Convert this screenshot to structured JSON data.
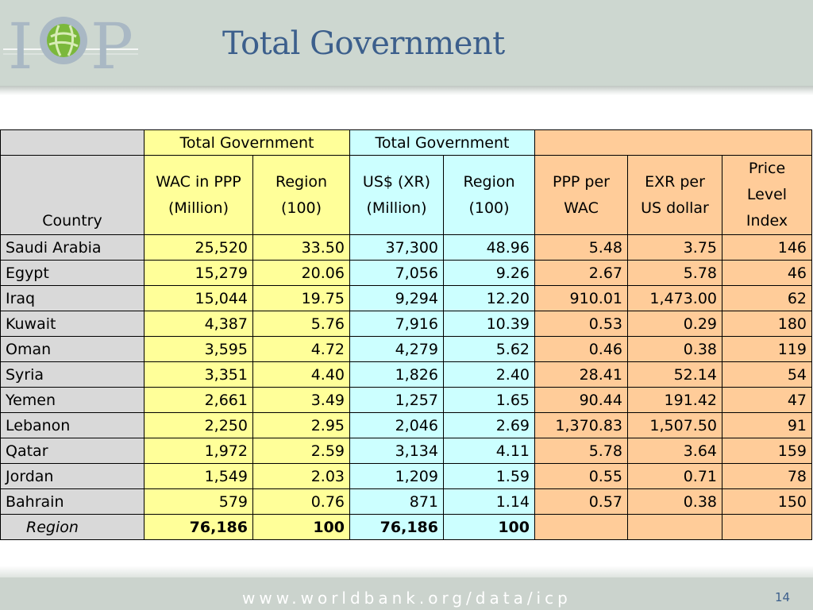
{
  "header": {
    "title": "Total Government"
  },
  "footer": {
    "url": "www.worldbank.org/data/icp",
    "page": "14"
  },
  "table": {
    "group_headers": [
      "Total Government",
      "Total Government"
    ],
    "columns": [
      "Country",
      "WAC in PPP (Million)",
      "Region (100)",
      "US$ (XR) (Million)",
      "Region (100)",
      "PPP per WAC",
      "EXR per US dollar",
      "Price Level Index"
    ],
    "rows": [
      [
        "Saudi Arabia",
        "25,520",
        "33.50",
        "37,300",
        "48.96",
        "5.48",
        "3.75",
        "146"
      ],
      [
        "Egypt",
        "15,279",
        "20.06",
        "7,056",
        "9.26",
        "2.67",
        "5.78",
        "46"
      ],
      [
        "Iraq",
        "15,044",
        "19.75",
        "9,294",
        "12.20",
        "910.01",
        "1,473.00",
        "62"
      ],
      [
        "Kuwait",
        "4,387",
        "5.76",
        "7,916",
        "10.39",
        "0.53",
        "0.29",
        "180"
      ],
      [
        "Oman",
        "3,595",
        "4.72",
        "4,279",
        "5.62",
        "0.46",
        "0.38",
        "119"
      ],
      [
        "Syria",
        "3,351",
        "4.40",
        "1,826",
        "2.40",
        "28.41",
        "52.14",
        "54"
      ],
      [
        "Yemen",
        "2,661",
        "3.49",
        "1,257",
        "1.65",
        "90.44",
        "191.42",
        "47"
      ],
      [
        "Lebanon",
        "2,250",
        "2.95",
        "2,046",
        "2.69",
        "1,370.83",
        "1,507.50",
        "91"
      ],
      [
        "Qatar",
        "1,972",
        "2.59",
        "3,134",
        "4.11",
        "5.78",
        "3.64",
        "159"
      ],
      [
        "Jordan",
        "1,549",
        "2.03",
        "1,209",
        "1.59",
        "0.55",
        "0.71",
        "78"
      ],
      [
        "Bahrain",
        "579",
        "0.76",
        "871",
        "1.14",
        "0.57",
        "0.38",
        "150"
      ]
    ],
    "total": [
      "Region",
      "76,186",
      "100",
      "76,186",
      "100",
      "",
      "",
      ""
    ]
  }
}
